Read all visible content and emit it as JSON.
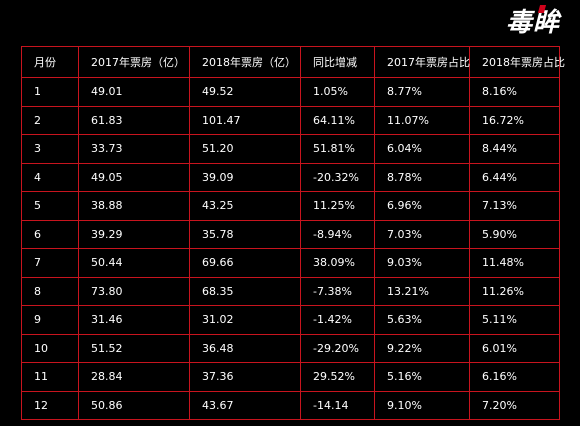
{
  "logo": {
    "text_main": "毒",
    "text_accent": "眸"
  },
  "table": {
    "headers": [
      "月份",
      "2017年票房（亿）",
      "2018年票房（亿）",
      "同比增减",
      "2017年票房占比",
      "2018年票房占比"
    ],
    "rows": [
      [
        "1",
        "49.01",
        "49.52",
        "1.05%",
        "8.77%",
        "8.16%"
      ],
      [
        "2",
        "61.83",
        "101.47",
        "64.11%",
        "11.07%",
        "16.72%"
      ],
      [
        "3",
        "33.73",
        "51.20",
        "51.81%",
        "6.04%",
        "8.44%"
      ],
      [
        "4",
        "49.05",
        "39.09",
        "-20.32%",
        "8.78%",
        "6.44%"
      ],
      [
        "5",
        "38.88",
        "43.25",
        "11.25%",
        "6.96%",
        "7.13%"
      ],
      [
        "6",
        "39.29",
        "35.78",
        "-8.94%",
        "7.03%",
        "5.90%"
      ],
      [
        "7",
        "50.44",
        "69.66",
        "38.09%",
        "9.03%",
        "11.48%"
      ],
      [
        "8",
        "73.80",
        "68.35",
        "-7.38%",
        "13.21%",
        "11.26%"
      ],
      [
        "9",
        "31.46",
        "31.02",
        "-1.42%",
        "5.63%",
        "5.11%"
      ],
      [
        "10",
        "51.52",
        "36.48",
        "-29.20%",
        "9.22%",
        "6.01%"
      ],
      [
        "11",
        "28.84",
        "37.36",
        "29.52%",
        "5.16%",
        "6.16%"
      ],
      [
        "12",
        "50.86",
        "43.67",
        "-14.14",
        "9.10%",
        "7.20%"
      ]
    ]
  },
  "colors": {
    "background": "#000000",
    "grid": "#c8141e",
    "text": "#ffffff"
  }
}
